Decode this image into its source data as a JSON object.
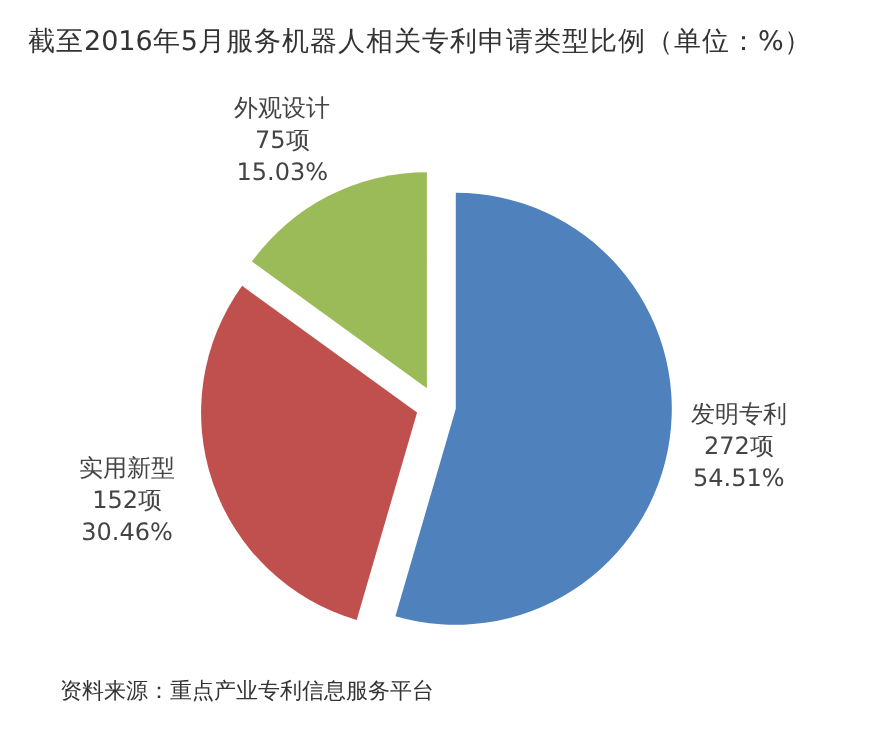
{
  "chart_data": {
    "type": "pie",
    "title": "截至2016年5月服务机器人相关专利申请类型比例（单位：%）",
    "categories": [
      "发明专利",
      "实用新型",
      "外观设计"
    ],
    "values": [
      272,
      152,
      75
    ],
    "value_labels": [
      "272项\n54.51%",
      "152项\n30.46%",
      "75项\n15.03%"
    ],
    "colors": [
      "#4f81bd",
      "#c0504d",
      "#9bbb59"
    ],
    "annotations": [
      "资料来源：重点产业专利信息服务平台"
    ]
  }
}
